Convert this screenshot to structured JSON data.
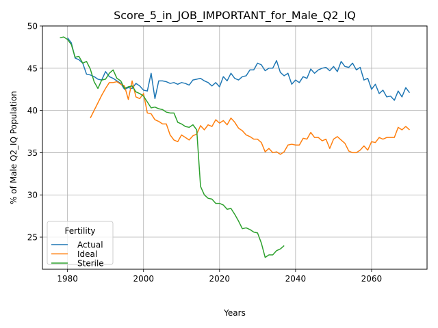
{
  "chart_data": {
    "type": "line",
    "title": "Score_5_in_JOB_IMPORTANT_for_Male_Q2_IQ",
    "xlabel": "Years",
    "ylabel": "% of Male Q2_IQ Population",
    "xlim": [
      1973.4,
      2074.6
    ],
    "ylim": [
      21.2,
      50.0
    ],
    "x_ticks": [
      1980,
      2000,
      2020,
      2040,
      2060
    ],
    "y_ticks": [
      25,
      30,
      35,
      40,
      45,
      50
    ],
    "grid": true,
    "legend": {
      "title": "Fertility",
      "placement": "lower-left"
    },
    "series": [
      {
        "name": "Actual",
        "color": "#1f77b4",
        "x": [
          1980,
          1981,
          1982,
          1983,
          1984,
          1985,
          1986,
          1987,
          1988,
          1989,
          1990,
          1991,
          1992,
          1993,
          1994,
          1995,
          1996,
          1997,
          1998,
          1999,
          2000,
          2001,
          2002,
          2003,
          2004,
          2005,
          2006,
          2007,
          2008,
          2009,
          2010,
          2011,
          2012,
          2013,
          2014,
          2015,
          2016,
          2017,
          2018,
          2019,
          2020,
          2021,
          2022,
          2023,
          2024,
          2025,
          2026,
          2027,
          2028,
          2029,
          2030,
          2031,
          2032,
          2033,
          2034,
          2035,
          2036,
          2037,
          2038,
          2039,
          2040,
          2041,
          2042,
          2043,
          2044,
          2045,
          2046,
          2047,
          2048,
          2049,
          2050,
          2051,
          2052,
          2053,
          2054,
          2055,
          2056,
          2057,
          2058,
          2059,
          2060,
          2061,
          2062,
          2063,
          2064,
          2065,
          2066,
          2067,
          2068,
          2069,
          2070
        ],
        "y": [
          48.6,
          48.0,
          46.2,
          46.0,
          45.6,
          44.3,
          44.2,
          44.0,
          43.7,
          43.6,
          44.6,
          44.0,
          43.8,
          43.5,
          43.2,
          42.5,
          42.7,
          42.6,
          43.2,
          42.9,
          42.4,
          42.3,
          44.4,
          41.4,
          43.5,
          43.5,
          43.4,
          43.2,
          43.3,
          43.1,
          43.3,
          43.2,
          43.0,
          43.6,
          43.7,
          43.8,
          43.5,
          43.3,
          42.9,
          43.3,
          42.8,
          44.0,
          43.5,
          44.4,
          43.8,
          43.6,
          44.0,
          44.1,
          44.8,
          44.8,
          45.6,
          45.4,
          44.7,
          45.0,
          45.0,
          45.9,
          44.5,
          44.1,
          44.4,
          43.1,
          43.6,
          43.3,
          44.0,
          43.8,
          44.9,
          44.4,
          44.8,
          45.0,
          45.1,
          44.7,
          45.2,
          44.6,
          45.8,
          45.2,
          45.1,
          45.6,
          44.8,
          45.1,
          43.6,
          43.8,
          42.5,
          43.1,
          42.0,
          42.4,
          41.6,
          41.7,
          41.2,
          42.3,
          41.6,
          42.7,
          42.1
        ]
      },
      {
        "name": "Ideal",
        "color": "#ff7f0e",
        "x": [
          1986,
          1987,
          1988,
          1989,
          1990,
          1991,
          1992,
          1993,
          1994,
          1995,
          1996,
          1997,
          1998,
          1999,
          2000,
          2001,
          2002,
          2003,
          2004,
          2005,
          2006,
          2007,
          2008,
          2009,
          2010,
          2011,
          2012,
          2013,
          2014,
          2015,
          2016,
          2017,
          2018,
          2019,
          2020,
          2021,
          2022,
          2023,
          2024,
          2025,
          2026,
          2027,
          2028,
          2029,
          2030,
          2031,
          2032,
          2033,
          2034,
          2035,
          2036,
          2037,
          2038,
          2039,
          2040,
          2041,
          2042,
          2043,
          2044,
          2045,
          2046,
          2047,
          2048,
          2049,
          2050,
          2051,
          2052,
          2053,
          2054,
          2055,
          2056,
          2057,
          2058,
          2059,
          2060,
          2061,
          2062,
          2063,
          2064,
          2065,
          2066,
          2067,
          2068,
          2069,
          2070
        ],
        "y": [
          39.1,
          40.0,
          40.9,
          41.8,
          42.6,
          43.3,
          43.3,
          43.4,
          43.1,
          42.9,
          41.3,
          43.5,
          41.6,
          41.4,
          42.0,
          39.7,
          39.6,
          38.9,
          38.7,
          38.4,
          38.4,
          37.1,
          36.5,
          36.3,
          37.1,
          36.8,
          36.5,
          37.0,
          37.2,
          38.2,
          37.7,
          38.3,
          38.1,
          38.9,
          38.5,
          38.8,
          38.3,
          39.1,
          38.6,
          37.9,
          37.6,
          37.1,
          36.9,
          36.6,
          36.6,
          36.2,
          35.1,
          35.5,
          35.0,
          35.1,
          34.8,
          35.1,
          35.9,
          36.0,
          35.9,
          35.9,
          36.7,
          36.6,
          37.4,
          36.8,
          36.8,
          36.4,
          36.6,
          35.5,
          36.6,
          36.9,
          36.5,
          36.1,
          35.2,
          35.0,
          35.0,
          35.3,
          35.8,
          35.3,
          36.3,
          36.2,
          36.8,
          36.6,
          36.8,
          36.8,
          36.8,
          38.0,
          37.7,
          38.1,
          37.7
        ]
      },
      {
        "name": "Sterile",
        "color": "#2ca02c",
        "x": [
          1978,
          1979,
          1980,
          1981,
          1982,
          1983,
          1984,
          1985,
          1986,
          1987,
          1988,
          1989,
          1990,
          1991,
          1992,
          1993,
          1994,
          1995,
          1996,
          1997,
          1998,
          1999,
          2000,
          2001,
          2002,
          2003,
          2004,
          2005,
          2006,
          2007,
          2008,
          2009,
          2010,
          2011,
          2012,
          2013,
          2014,
          2015,
          2016,
          2017,
          2018,
          2019,
          2020,
          2021,
          2022,
          2023,
          2024,
          2025,
          2026,
          2027,
          2028,
          2029,
          2030,
          2031,
          2032,
          2033,
          2034,
          2035,
          2036,
          2037
        ],
        "y": [
          48.6,
          48.7,
          48.4,
          47.8,
          46.3,
          46.4,
          45.6,
          45.8,
          44.9,
          43.4,
          42.6,
          43.6,
          43.7,
          44.4,
          44.8,
          43.8,
          43.5,
          42.6,
          42.8,
          42.9,
          42.2,
          42.0,
          41.7,
          41.0,
          40.3,
          40.4,
          40.2,
          40.1,
          39.8,
          39.7,
          39.7,
          38.6,
          38.4,
          38.1,
          38.0,
          38.3,
          37.7,
          31.0,
          30.0,
          29.6,
          29.5,
          29.0,
          29.0,
          28.8,
          28.3,
          28.4,
          27.7,
          26.9,
          26.0,
          26.1,
          25.9,
          25.6,
          25.5,
          24.3,
          22.6,
          22.9,
          22.9,
          23.4,
          23.6,
          24.0
        ]
      }
    ]
  }
}
